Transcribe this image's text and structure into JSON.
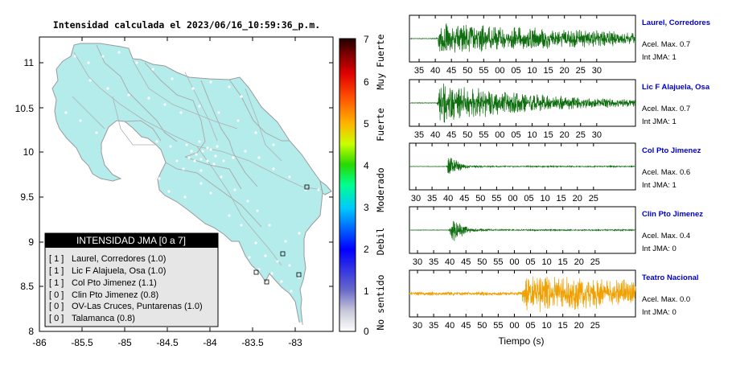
{
  "map": {
    "title": "Intensidad calculada el 2023/06/16_10:59:36_p.m.",
    "xticks": [
      "-86",
      "-85.5",
      "-85",
      "-84.5",
      "-84",
      "-83.5",
      "-83"
    ],
    "yticks": [
      "11",
      "10.5",
      "10",
      "9.5",
      "9",
      "8.5",
      "8"
    ],
    "colors": {
      "land": "#b4ebeb",
      "border": "#9a9a9a",
      "station": "#ffffff"
    }
  },
  "legend": {
    "title": "INTENSIDAD JMA [0 a 7]",
    "items": [
      {
        "tag": "[ 1 ]",
        "label": "Laurel, Corredores (1.0)"
      },
      {
        "tag": "[ 1 ]",
        "label": "Lic F Alajuela, Osa (1.0)"
      },
      {
        "tag": "[ 1 ]",
        "label": "Col Pto Jimenez (1.1)"
      },
      {
        "tag": "[ 0 ]",
        "label": "Clin Pto Jimenez (0.8)"
      },
      {
        "tag": "[ 0 ]",
        "label": "OV-Las Cruces, Puntarenas (1.0)"
      },
      {
        "tag": "[ 0 ]",
        "label": "Talamanca (0.8)"
      }
    ]
  },
  "colorbar": {
    "ticks": [
      "7",
      "6",
      "5",
      "4",
      "3",
      "2",
      "1",
      "0"
    ],
    "categories": [
      "Muy Fuerte",
      "Fuerte",
      "Moderado",
      "Debil",
      "No sentido"
    ]
  },
  "chart_data": {
    "type": "line",
    "xlabel": "Tiempo (s)",
    "series": [
      {
        "name": "Laurel, Corredores",
        "accel_label": "Acel. Max. 0.7",
        "jma_label": "Int JMA: 1",
        "color": "#0f6e0f",
        "onset": 40.3,
        "start": 32,
        "amp": 0.8,
        "decay": 0.015,
        "noise": 0.02,
        "peak_rel": 0.02,
        "freq": 0.3,
        "xticks": [
          "35",
          "40",
          "45",
          "50",
          "55",
          "00",
          "05",
          "10",
          "15",
          "20",
          "25",
          "30"
        ]
      },
      {
        "name": "Lic F Alajuela, Osa",
        "accel_label": "Acel. Max. 0.7",
        "jma_label": "Int JMA: 1",
        "color": "#0f6e0f",
        "onset": 40.5,
        "start": 32,
        "amp": 1.0,
        "decay": 0.03,
        "noise": 0.015,
        "peak_rel": 0.02,
        "freq": 0.35,
        "xticks": [
          "35",
          "40",
          "45",
          "50",
          "55",
          "00",
          "05",
          "10",
          "15",
          "20",
          "25",
          "30"
        ]
      },
      {
        "name": "Col Pto Jimenez",
        "accel_label": "Acel. Max. 0.6",
        "jma_label": "Int JMA: 1",
        "color": "#0f6e0f",
        "onset": 39.5,
        "start": 28,
        "amp": 1.0,
        "decay": 0.14,
        "noise": 0.01,
        "peak_rel": 0.03,
        "freq": 0.45,
        "xticks": [
          "30",
          "35",
          "40",
          "45",
          "50",
          "55",
          "00",
          "05",
          "10",
          "15",
          "20",
          "25"
        ]
      },
      {
        "name": "Clin Pto Jimenez",
        "accel_label": "Acel. Max. 0.4",
        "jma_label": "Int JMA: 0",
        "color": "#0f6e0f",
        "onset": 39.8,
        "start": 27.5,
        "amp": 1.0,
        "decay": 0.11,
        "noise": 0.01,
        "peak_rel": 0.03,
        "freq": 0.45,
        "xticks": [
          "30",
          "35",
          "40",
          "45",
          "50",
          "55",
          "00",
          "05",
          "10",
          "15",
          "20",
          "25"
        ]
      },
      {
        "name": "Teatro Nacional",
        "accel_label": "Acel. Max. 0.0",
        "jma_label": "Int JMA: 0",
        "color": "#f0a000",
        "onset": 62.5,
        "start": 27.5,
        "amp": 0.9,
        "decay": 0.02,
        "noise": 0.1,
        "peak_rel": 0.5,
        "freq": 0.6,
        "xticks": [
          "30",
          "35",
          "40",
          "45",
          "50",
          "55",
          "00",
          "05",
          "10",
          "15",
          "20",
          "25"
        ]
      }
    ]
  }
}
